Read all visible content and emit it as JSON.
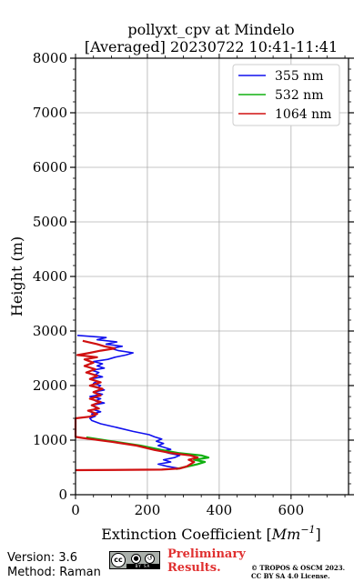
{
  "chart_data": {
    "type": "line",
    "title_line1": "pollyxt_cpv at Mindelo",
    "title_line2": "[Averaged] 20230722 10:41-11:41",
    "xlabel_prefix": "Extinction Coefficient [",
    "xlabel_unit": "Mm",
    "xlabel_exp": "−1",
    "xlabel_suffix": "]",
    "ylabel": "Height (m)",
    "xlim": [
      0,
      760
    ],
    "ylim": [
      0,
      8000
    ],
    "xticks": [
      "0",
      "200",
      "400",
      "600"
    ],
    "yticks": [
      "0",
      "1000",
      "2000",
      "3000",
      "4000",
      "5000",
      "6000",
      "7000",
      "8000"
    ],
    "grid": true,
    "legend_position": "top-right",
    "series": [
      {
        "name": "355 nm",
        "color": "#1010ee",
        "points": [
          [
            290,
            480
          ],
          [
            255,
            520
          ],
          [
            230,
            560
          ],
          [
            265,
            600
          ],
          [
            245,
            640
          ],
          [
            275,
            680
          ],
          [
            290,
            720
          ],
          [
            260,
            760
          ],
          [
            240,
            800
          ],
          [
            265,
            830
          ],
          [
            250,
            860
          ],
          [
            230,
            900
          ],
          [
            245,
            940
          ],
          [
            225,
            980
          ],
          [
            240,
            1020
          ],
          [
            220,
            1060
          ],
          [
            205,
            1100
          ],
          [
            160,
            1160
          ],
          [
            110,
            1240
          ],
          [
            70,
            1300
          ],
          [
            45,
            1360
          ],
          [
            40,
            1400
          ],
          [
            55,
            1440
          ],
          [
            45,
            1480
          ],
          [
            70,
            1520
          ],
          [
            50,
            1560
          ],
          [
            60,
            1600
          ],
          [
            45,
            1640
          ],
          [
            80,
            1680
          ],
          [
            55,
            1720
          ],
          [
            70,
            1760
          ],
          [
            40,
            1800
          ],
          [
            75,
            1840
          ],
          [
            50,
            1880
          ],
          [
            80,
            1920
          ],
          [
            60,
            1960
          ],
          [
            70,
            2000
          ],
          [
            50,
            2040
          ],
          [
            60,
            2080
          ],
          [
            40,
            2120
          ],
          [
            75,
            2160
          ],
          [
            55,
            2200
          ],
          [
            65,
            2240
          ],
          [
            45,
            2280
          ],
          [
            80,
            2320
          ],
          [
            60,
            2360
          ],
          [
            75,
            2400
          ],
          [
            50,
            2440
          ],
          [
            90,
            2480
          ],
          [
            110,
            2520
          ],
          [
            140,
            2560
          ],
          [
            160,
            2600
          ],
          [
            120,
            2640
          ],
          [
            100,
            2680
          ],
          [
            130,
            2720
          ],
          [
            85,
            2760
          ],
          [
            115,
            2800
          ],
          [
            60,
            2840
          ],
          [
            85,
            2880
          ],
          [
            5,
            2920
          ]
        ]
      },
      {
        "name": "532 nm",
        "color": "#10b010",
        "points": [
          [
            280,
            470
          ],
          [
            300,
            500
          ],
          [
            340,
            560
          ],
          [
            360,
            600
          ],
          [
            330,
            640
          ],
          [
            370,
            680
          ],
          [
            350,
            720
          ],
          [
            290,
            760
          ],
          [
            240,
            820
          ],
          [
            180,
            900
          ],
          [
            100,
            980
          ],
          [
            30,
            1050
          ]
        ]
      },
      {
        "name": "1064 nm",
        "color": "#d01010",
        "points": [
          [
            0,
            450
          ],
          [
            240,
            460
          ],
          [
            290,
            480
          ],
          [
            310,
            520
          ],
          [
            320,
            560
          ],
          [
            330,
            600
          ],
          [
            315,
            640
          ],
          [
            340,
            680
          ],
          [
            320,
            720
          ],
          [
            270,
            760
          ],
          [
            220,
            820
          ],
          [
            170,
            900
          ],
          [
            100,
            970
          ],
          [
            20,
            1040
          ],
          [
            0,
            1060
          ],
          [
            0,
            1400
          ],
          [
            40,
            1430
          ],
          [
            60,
            1480
          ],
          [
            35,
            1540
          ],
          [
            65,
            1580
          ],
          [
            45,
            1640
          ],
          [
            70,
            1700
          ],
          [
            40,
            1760
          ],
          [
            70,
            1820
          ],
          [
            50,
            1880
          ],
          [
            75,
            1940
          ],
          [
            40,
            2000
          ],
          [
            70,
            2060
          ],
          [
            40,
            2120
          ],
          [
            60,
            2180
          ],
          [
            30,
            2240
          ],
          [
            55,
            2300
          ],
          [
            25,
            2360
          ],
          [
            50,
            2420
          ],
          [
            25,
            2480
          ],
          [
            60,
            2520
          ],
          [
            5,
            2560
          ],
          [
            40,
            2600
          ],
          [
            70,
            2640
          ],
          [
            110,
            2680
          ],
          [
            80,
            2720
          ],
          [
            60,
            2760
          ],
          [
            20,
            2820
          ]
        ]
      }
    ]
  },
  "footer": {
    "version": "Version: 3.6",
    "method": "Method: Raman",
    "preliminary_line1": "Preliminary",
    "preliminary_line2": "Results.",
    "copyright_line1": "© TROPOS & OSCM 2023.",
    "copyright_line2": "CC BY SA 4.0 License.",
    "cc_text": "cc",
    "cc_bar": "BY SA"
  },
  "colors": {
    "grid": "#b0b0b0",
    "preliminary": "#e03030"
  }
}
